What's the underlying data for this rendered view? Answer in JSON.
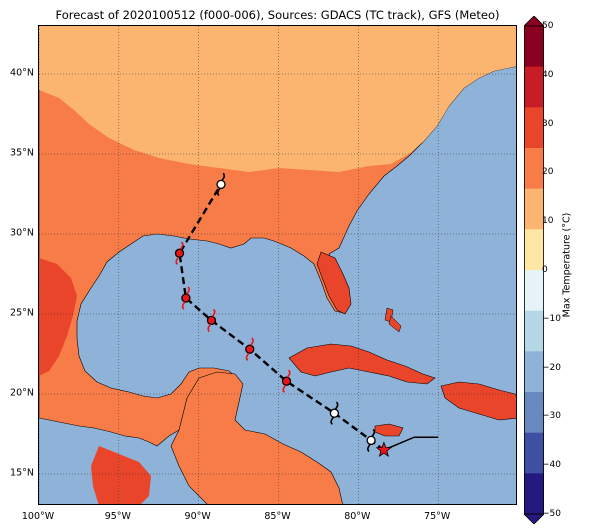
{
  "title": "Forecast of 2020100512 (f000-006), Sources: GDACS (TC track), GFS (Meteo)",
  "map": {
    "projection": "plate-carree",
    "lon_range": [
      -100,
      -70
    ],
    "lat_range": [
      13,
      43
    ],
    "grid": true,
    "ocean_color": "#8fb2d8",
    "land_fill_levels_c": [
      10,
      20,
      30
    ]
  },
  "x_ticks": [
    {
      "value": -100,
      "label": "100°W"
    },
    {
      "value": -95,
      "label": "95°W"
    },
    {
      "value": -90,
      "label": "90°W"
    },
    {
      "value": -85,
      "label": "85°W"
    },
    {
      "value": -80,
      "label": "80°W"
    },
    {
      "value": -75,
      "label": "75°W"
    }
  ],
  "y_ticks": [
    {
      "value": 15,
      "label": "15°N"
    },
    {
      "value": 20,
      "label": "20°N"
    },
    {
      "value": 25,
      "label": "25°N"
    },
    {
      "value": 30,
      "label": "30°N"
    },
    {
      "value": 35,
      "label": "35°N"
    },
    {
      "value": 40,
      "label": "40°N"
    }
  ],
  "colorbar": {
    "label": "Max Temperature (°C)",
    "ticks": [
      "50",
      "40",
      "30",
      "20",
      "10",
      "0",
      "−10",
      "−20",
      "−30",
      "−40",
      "−50"
    ],
    "colors": [
      "#8b0021",
      "#c61d26",
      "#e8452b",
      "#f77c47",
      "#fcb571",
      "#fee6a5",
      "#e6f4f7",
      "#b5d7e8",
      "#8fb2d8",
      "#6789c0",
      "#3f4fa3",
      "#24197f"
    ]
  },
  "track": {
    "line_style": "dashed",
    "points": [
      {
        "lon": -78.4,
        "lat": 16.5,
        "marker": "star",
        "color": "#e8141e"
      },
      {
        "lon": -79.2,
        "lat": 17.1,
        "marker": "cyclone",
        "color": "#ffffff"
      },
      {
        "lon": -81.5,
        "lat": 18.8,
        "marker": "cyclone",
        "color": "#ffffff"
      },
      {
        "lon": -84.5,
        "lat": 20.8,
        "marker": "cyclone",
        "color": "#e8141e"
      },
      {
        "lon": -86.8,
        "lat": 22.8,
        "marker": "cyclone",
        "color": "#e8141e"
      },
      {
        "lon": -89.2,
        "lat": 24.6,
        "marker": "cyclone",
        "color": "#e8141e"
      },
      {
        "lon": -90.8,
        "lat": 26.0,
        "marker": "cyclone",
        "color": "#e8141e"
      },
      {
        "lon": -91.2,
        "lat": 28.8,
        "marker": "cyclone",
        "color": "#e8141e"
      },
      {
        "lon": -88.6,
        "lat": 33.1,
        "marker": "cyclone",
        "color": "#ffffff"
      }
    ],
    "prior_path": [
      [
        -78.4,
        16.5
      ],
      [
        -76.5,
        17.3
      ],
      [
        -75.0,
        17.3
      ]
    ]
  }
}
